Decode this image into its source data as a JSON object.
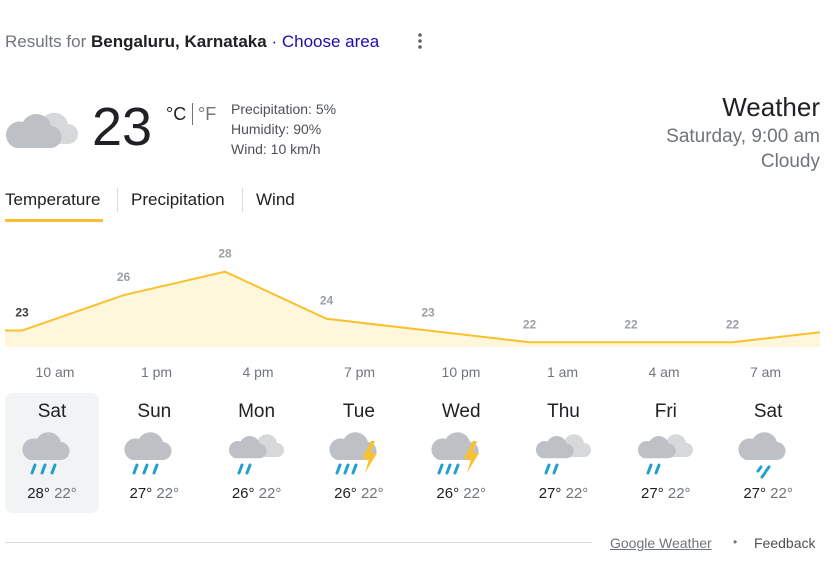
{
  "header": {
    "prefix": "Results for",
    "location": "Bengaluru, Karnataka",
    "separator": "·",
    "link": "Choose area"
  },
  "current": {
    "temperature": 23,
    "unit_c": "°C",
    "unit_f": "°F",
    "precipitation": "Precipitation: 5%",
    "humidity": "Humidity: 90%",
    "wind": "Wind: 10 km/h"
  },
  "summary": {
    "title": "Weather",
    "time": "Saturday, 9:00 am",
    "condition": "Cloudy"
  },
  "tabs": [
    "Temperature",
    "Precipitation",
    "Wind"
  ],
  "chart_data": {
    "type": "area",
    "x": [
      "10 am",
      "1 pm",
      "4 pm",
      "7 pm",
      "10 pm",
      "1 am",
      "4 am",
      "7 am"
    ],
    "values": [
      23,
      26,
      28,
      24,
      23,
      22,
      22,
      22
    ],
    "color": "#fbc02d",
    "fill": "#fef7dc",
    "ylim": [
      21.6,
      29.5
    ]
  },
  "days": [
    {
      "name": "Sat",
      "high": "28°",
      "low": "22°"
    },
    {
      "name": "Sun",
      "high": "27°",
      "low": "22°"
    },
    {
      "name": "Mon",
      "high": "26°",
      "low": "22°"
    },
    {
      "name": "Tue",
      "high": "26°",
      "low": "22°"
    },
    {
      "name": "Wed",
      "high": "26°",
      "low": "22°"
    },
    {
      "name": "Thu",
      "high": "27°",
      "low": "22°"
    },
    {
      "name": "Fri",
      "high": "27°",
      "low": "22°"
    },
    {
      "name": "Sat",
      "high": "27°",
      "low": "22°"
    }
  ],
  "footer": {
    "source": "Google Weather",
    "separator": "•",
    "feedback": "Feedback"
  }
}
